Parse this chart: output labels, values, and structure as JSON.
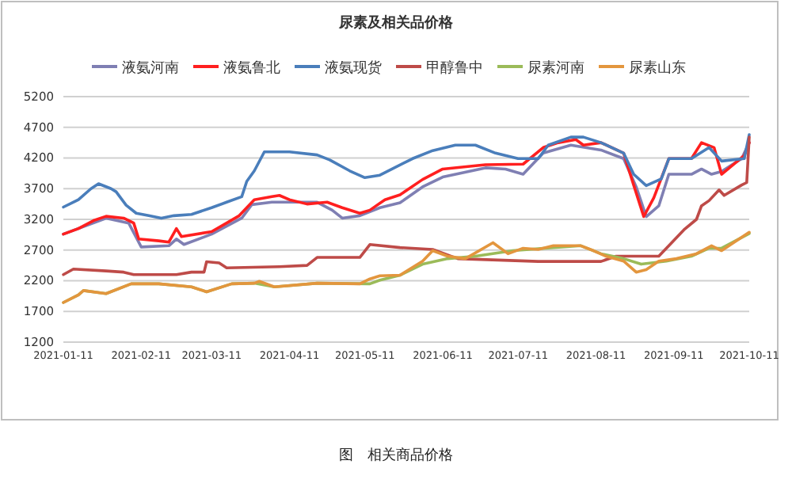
{
  "chart_data": {
    "type": "line",
    "title": "尿素及相关品价格",
    "annotations": [
      "图　相关商品价格"
    ],
    "xlim": [
      "2021-01-11",
      "2021-10-11"
    ],
    "xticks": [
      "2021-01-11",
      "2021-02-11",
      "2021-03-11",
      "2021-04-11",
      "2021-05-11",
      "2021-06-11",
      "2021-07-11",
      "2021-08-11",
      "2021-09-11",
      "2021-10-11"
    ],
    "ylim": [
      1200,
      5200
    ],
    "yticks": [
      1200,
      1700,
      2200,
      2700,
      3200,
      3700,
      4200,
      4700,
      5200
    ],
    "grid": "y",
    "legend": "top",
    "marker": "none",
    "line_style": "solid",
    "series": [
      {
        "name": "液氨河南",
        "color": "#7f7fb3",
        "x": [
          "2021-01-11",
          "2021-01-28",
          "2021-02-06",
          "2021-02-11",
          "2021-02-22",
          "2021-02-25",
          "2021-02-28",
          "2021-03-11",
          "2021-03-23",
          "2021-03-27",
          "2021-04-04",
          "2021-04-11",
          "2021-04-22",
          "2021-04-28",
          "2021-05-02",
          "2021-05-09",
          "2021-05-17",
          "2021-05-25",
          "2021-06-03",
          "2021-06-11",
          "2021-06-28",
          "2021-07-06",
          "2021-07-13",
          "2021-07-21",
          "2021-08-01",
          "2021-08-13",
          "2021-08-22",
          "2021-08-27",
          "2021-08-31",
          "2021-09-05",
          "2021-09-09",
          "2021-09-18",
          "2021-09-22",
          "2021-09-26",
          "2021-09-30",
          "2021-10-08",
          "2021-10-11"
        ],
        "values": [
          2960,
          3220,
          3140,
          2750,
          2770,
          2880,
          2790,
          2960,
          3220,
          3440,
          3480,
          3480,
          3480,
          3350,
          3220,
          3260,
          3390,
          3470,
          3730,
          3890,
          4040,
          4020,
          3935,
          4280,
          4410,
          4330,
          4190,
          3730,
          3245,
          3420,
          3935,
          3935,
          4020,
          3935,
          3980,
          4190,
          4450
        ]
      },
      {
        "name": "液氨鲁北",
        "color": "#ff1f1f",
        "x": [
          "2021-01-11",
          "2021-01-17",
          "2021-01-23",
          "2021-01-28",
          "2021-02-04",
          "2021-02-08",
          "2021-02-10",
          "2021-02-18",
          "2021-02-22",
          "2021-02-25",
          "2021-02-27",
          "2021-03-11",
          "2021-03-17",
          "2021-03-22",
          "2021-03-28",
          "2021-04-04",
          "2021-04-07",
          "2021-04-11",
          "2021-04-18",
          "2021-04-26",
          "2021-05-02",
          "2021-05-09",
          "2021-05-13",
          "2021-05-19",
          "2021-05-25",
          "2021-06-03",
          "2021-06-11",
          "2021-06-28",
          "2021-07-13",
          "2021-07-21",
          "2021-07-27",
          "2021-08-03",
          "2021-08-06",
          "2021-08-13",
          "2021-08-22",
          "2021-08-26",
          "2021-08-30",
          "2021-09-03",
          "2021-09-09",
          "2021-09-18",
          "2021-09-22",
          "2021-09-27",
          "2021-09-30",
          "2021-10-09",
          "2021-10-11"
        ],
        "values": [
          2960,
          3050,
          3180,
          3250,
          3220,
          3140,
          2880,
          2850,
          2830,
          3050,
          2920,
          3000,
          3140,
          3260,
          3520,
          3570,
          3590,
          3520,
          3450,
          3480,
          3390,
          3300,
          3350,
          3520,
          3600,
          3850,
          4020,
          4090,
          4100,
          4370,
          4450,
          4500,
          4410,
          4450,
          4280,
          3760,
          3245,
          3550,
          4190,
          4190,
          4450,
          4370,
          3935,
          4240,
          4450
        ]
      },
      {
        "name": "液氨现货",
        "color": "#4a7ebb",
        "x": [
          "2021-01-11",
          "2021-01-17",
          "2021-01-22",
          "2021-01-25",
          "2021-01-30",
          "2021-02-01",
          "2021-02-05",
          "2021-02-09",
          "2021-02-14",
          "2021-02-19",
          "2021-02-24",
          "2021-03-03",
          "2021-03-11",
          "2021-03-17",
          "2021-03-23",
          "2021-03-25",
          "2021-03-28",
          "2021-04-01",
          "2021-04-11",
          "2021-04-22",
          "2021-04-27",
          "2021-05-05",
          "2021-05-11",
          "2021-05-17",
          "2021-05-30",
          "2021-06-07",
          "2021-06-16",
          "2021-06-24",
          "2021-07-02",
          "2021-07-11",
          "2021-07-19",
          "2021-07-23",
          "2021-08-01",
          "2021-08-06",
          "2021-08-13",
          "2021-08-22",
          "2021-08-26",
          "2021-08-31",
          "2021-09-06",
          "2021-09-09",
          "2021-09-18",
          "2021-09-25",
          "2021-09-30",
          "2021-10-09",
          "2021-10-11"
        ],
        "values": [
          3400,
          3520,
          3700,
          3780,
          3700,
          3650,
          3430,
          3300,
          3260,
          3220,
          3260,
          3280,
          3390,
          3480,
          3570,
          3820,
          3990,
          4300,
          4300,
          4250,
          4170,
          3990,
          3880,
          3920,
          4190,
          4320,
          4410,
          4410,
          4280,
          4190,
          4190,
          4410,
          4540,
          4540,
          4450,
          4280,
          3935,
          3750,
          3860,
          4190,
          4190,
          4370,
          4150,
          4190,
          4580
        ]
      },
      {
        "name": "甲醇鲁中",
        "color": "#be4b48",
        "x": [
          "2021-01-11",
          "2021-01-15",
          "2021-01-28",
          "2021-02-04",
          "2021-02-08",
          "2021-02-25",
          "2021-03-03",
          "2021-03-08",
          "2021-03-09",
          "2021-03-14",
          "2021-03-17",
          "2021-04-07",
          "2021-04-18",
          "2021-04-22",
          "2021-05-09",
          "2021-05-13",
          "2021-05-25",
          "2021-06-07",
          "2021-06-17",
          "2021-07-19",
          "2021-08-13",
          "2021-08-19",
          "2021-09-05",
          "2021-09-09",
          "2021-09-15",
          "2021-09-20",
          "2021-09-22",
          "2021-09-25",
          "2021-09-29",
          "2021-10-01",
          "2021-10-08",
          "2021-10-10",
          "2021-10-11"
        ],
        "values": [
          2300,
          2390,
          2360,
          2340,
          2300,
          2300,
          2340,
          2340,
          2510,
          2490,
          2410,
          2430,
          2450,
          2580,
          2580,
          2790,
          2740,
          2710,
          2560,
          2515,
          2515,
          2600,
          2600,
          2770,
          3030,
          3200,
          3420,
          3505,
          3680,
          3590,
          3760,
          3800,
          4540
        ]
      },
      {
        "name": "尿素河南",
        "color": "#9bbb59",
        "x": [
          "2021-01-11",
          "2021-01-17",
          "2021-01-19",
          "2021-01-28",
          "2021-02-07",
          "2021-02-18",
          "2021-03-03",
          "2021-03-09",
          "2021-03-19",
          "2021-03-28",
          "2021-04-05",
          "2021-04-22",
          "2021-05-13",
          "2021-05-17",
          "2021-05-25",
          "2021-06-03",
          "2021-06-13",
          "2021-06-24",
          "2021-07-09",
          "2021-07-25",
          "2021-08-05",
          "2021-08-13",
          "2021-08-22",
          "2021-08-29",
          "2021-09-08",
          "2021-09-18",
          "2021-09-25",
          "2021-09-30",
          "2021-10-11"
        ],
        "values": [
          1845,
          1970,
          2040,
          1990,
          2150,
          2150,
          2100,
          2020,
          2150,
          2160,
          2100,
          2160,
          2150,
          2210,
          2290,
          2470,
          2560,
          2600,
          2690,
          2740,
          2770,
          2640,
          2560,
          2470,
          2520,
          2600,
          2730,
          2730,
          2970
        ]
      },
      {
        "name": "尿素山东",
        "color": "#e3963e",
        "x": [
          "2021-01-11",
          "2021-01-17",
          "2021-01-19",
          "2021-01-28",
          "2021-02-07",
          "2021-02-18",
          "2021-03-03",
          "2021-03-09",
          "2021-03-19",
          "2021-03-28",
          "2021-03-30",
          "2021-04-05",
          "2021-04-22",
          "2021-05-09",
          "2021-05-13",
          "2021-05-17",
          "2021-05-25",
          "2021-06-03",
          "2021-06-07",
          "2021-06-13",
          "2021-06-20",
          "2021-07-01",
          "2021-07-07",
          "2021-07-13",
          "2021-07-19",
          "2021-07-25",
          "2021-08-05",
          "2021-08-10",
          "2021-08-15",
          "2021-08-22",
          "2021-08-27",
          "2021-08-31",
          "2021-09-05",
          "2021-09-12",
          "2021-09-20",
          "2021-09-26",
          "2021-09-30",
          "2021-10-11"
        ],
        "values": [
          1845,
          1970,
          2040,
          1990,
          2150,
          2150,
          2100,
          2020,
          2150,
          2160,
          2190,
          2100,
          2160,
          2150,
          2230,
          2280,
          2290,
          2520,
          2690,
          2600,
          2560,
          2820,
          2640,
          2730,
          2710,
          2770,
          2770,
          2690,
          2600,
          2520,
          2340,
          2380,
          2520,
          2560,
          2640,
          2770,
          2690,
          2990
        ]
      }
    ]
  }
}
